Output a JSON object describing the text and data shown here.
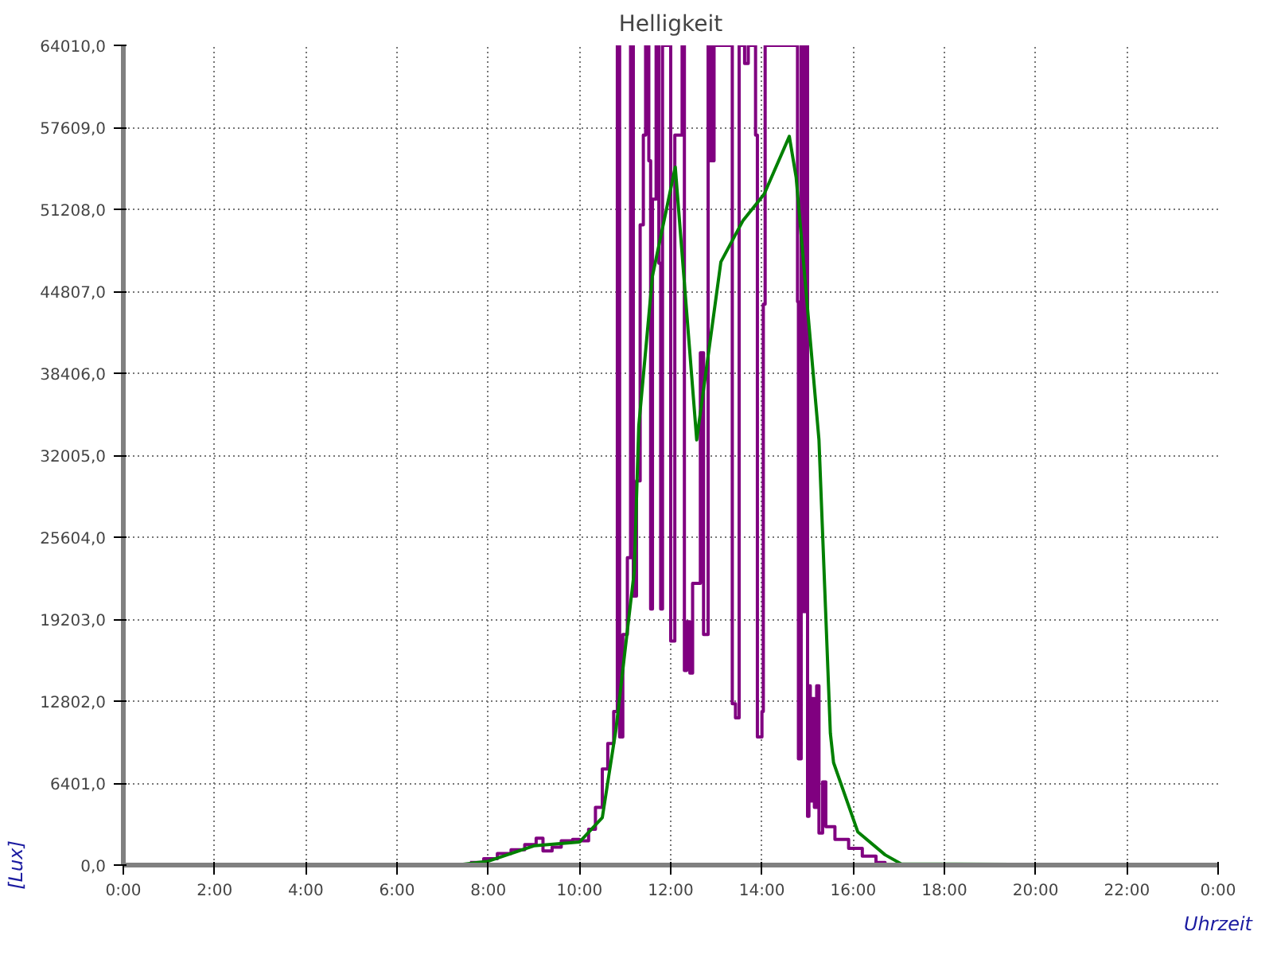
{
  "chart_data": {
    "type": "line",
    "title": "Helligkeit",
    "xlabel": "Uhrzeit",
    "ylabel": "[Lux]",
    "xlim": [
      0,
      24
    ],
    "ylim": [
      0,
      64010
    ],
    "xticks": [
      {
        "value": 0,
        "label": "0:00"
      },
      {
        "value": 2,
        "label": "2:00"
      },
      {
        "value": 4,
        "label": "4:00"
      },
      {
        "value": 6,
        "label": "6:00"
      },
      {
        "value": 8,
        "label": "8:00"
      },
      {
        "value": 10,
        "label": "10:00"
      },
      {
        "value": 12,
        "label": "12:00"
      },
      {
        "value": 14,
        "label": "14:00"
      },
      {
        "value": 16,
        "label": "16:00"
      },
      {
        "value": 18,
        "label": "18:00"
      },
      {
        "value": 20,
        "label": "20:00"
      },
      {
        "value": 22,
        "label": "22:00"
      },
      {
        "value": 24,
        "label": "0:00"
      }
    ],
    "yticks": [
      {
        "value": 0,
        "label": "0,0"
      },
      {
        "value": 6401,
        "label": "6401,0"
      },
      {
        "value": 12802,
        "label": "12802,0"
      },
      {
        "value": 19203,
        "label": "19203,0"
      },
      {
        "value": 25604,
        "label": "25604,0"
      },
      {
        "value": 32005,
        "label": "32005,0"
      },
      {
        "value": 38406,
        "label": "38406,0"
      },
      {
        "value": 44807,
        "label": "44807,0"
      },
      {
        "value": 51208,
        "label": "51208,0"
      },
      {
        "value": 57609,
        "label": "57609,0"
      },
      {
        "value": 64010,
        "label": "64010,0"
      }
    ],
    "grid": true,
    "line_style": "solid",
    "marker": "none",
    "series": [
      {
        "type": "step",
        "color": "#800080",
        "x": [
          7.6,
          7.9,
          8.2,
          8.5,
          8.8,
          9.05,
          9.2,
          9.4,
          9.6,
          9.85,
          10.0,
          10.2,
          10.35,
          10.5,
          10.62,
          10.75,
          10.83,
          10.88,
          10.95,
          11.05,
          11.12,
          11.18,
          11.25,
          11.33,
          11.4,
          11.45,
          11.52,
          11.56,
          11.6,
          11.68,
          11.74,
          11.78,
          11.82,
          12.0,
          12.09,
          12.25,
          12.3,
          12.35,
          12.42,
          12.48,
          12.55,
          12.65,
          12.72,
          12.82,
          12.88,
          12.95,
          13.3,
          13.35,
          13.42,
          13.5,
          13.62,
          13.7,
          13.86,
          13.9,
          14.0,
          14.03,
          14.07,
          14.75,
          14.78,
          14.8,
          14.86,
          14.9,
          14.95,
          15.0,
          15.03,
          15.06,
          15.1,
          15.15,
          15.2,
          15.25,
          15.33,
          15.4,
          15.6,
          15.9,
          16.2,
          16.5,
          16.7,
          24
        ],
        "values": [
          200,
          500,
          900,
          1200,
          1600,
          2100,
          1100,
          1400,
          1900,
          2000,
          1900,
          2800,
          4500,
          7500,
          9500,
          12000,
          64010,
          10000,
          18000,
          24000,
          64010,
          21000,
          30000,
          50000,
          57000,
          64010,
          55000,
          20000,
          52000,
          64010,
          47000,
          20000,
          64010,
          17500,
          57000,
          64010,
          15200,
          19000,
          15000,
          22000,
          22000,
          40000,
          18000,
          64010,
          55000,
          64010,
          64010,
          12600,
          11500,
          64010,
          62600,
          64010,
          57000,
          10000,
          12000,
          43800,
          64010,
          64010,
          44000,
          8300,
          64010,
          19800,
          64010,
          3800,
          14000,
          5000,
          13000,
          4500,
          14000,
          2500,
          6500,
          3000,
          2000,
          1300,
          700,
          200,
          0,
          0
        ]
      },
      {
        "color": "#008000",
        "x": [
          0,
          7.3,
          8.0,
          9.0,
          10.0,
          10.5,
          10.8,
          11.0,
          11.2,
          11.3,
          11.6,
          12.1,
          12.57,
          13.1,
          13.58,
          14.05,
          14.6,
          14.75,
          15.25,
          15.5,
          15.57,
          16.1,
          16.7,
          17.05,
          24
        ],
        "values": [
          0,
          0,
          300,
          1500,
          1800,
          3700,
          10600,
          16800,
          22900,
          34300,
          46000,
          54500,
          33200,
          47100,
          50300,
          52400,
          56900,
          53700,
          33200,
          10300,
          8000,
          2600,
          800,
          100,
          0
        ]
      }
    ]
  }
}
